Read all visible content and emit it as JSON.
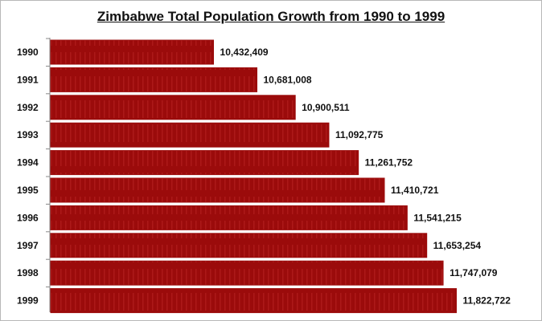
{
  "chart_data": {
    "type": "bar",
    "orientation": "horizontal",
    "title": "Zimbabwe Total Population Growth from 1990 to 1999",
    "categories": [
      "1990",
      "1991",
      "1992",
      "1993",
      "1994",
      "1995",
      "1996",
      "1997",
      "1998",
      "1999"
    ],
    "values": [
      10432409,
      10681008,
      10900511,
      11092775,
      11261752,
      11410721,
      11541215,
      11653254,
      11747079,
      11822722
    ],
    "data_labels": [
      "10,432,409",
      "10,681,008",
      "10,900,511",
      "11,092,775",
      "11,261,752",
      "11,410,721",
      "11,541,215",
      "11,653,254",
      "11,747,079",
      "11,822,722"
    ],
    "xlim": [
      9500000,
      12000000
    ],
    "xlabel": "",
    "ylabel": "",
    "grid": false,
    "legend": "none",
    "bar_color": "#9b0b0b"
  }
}
